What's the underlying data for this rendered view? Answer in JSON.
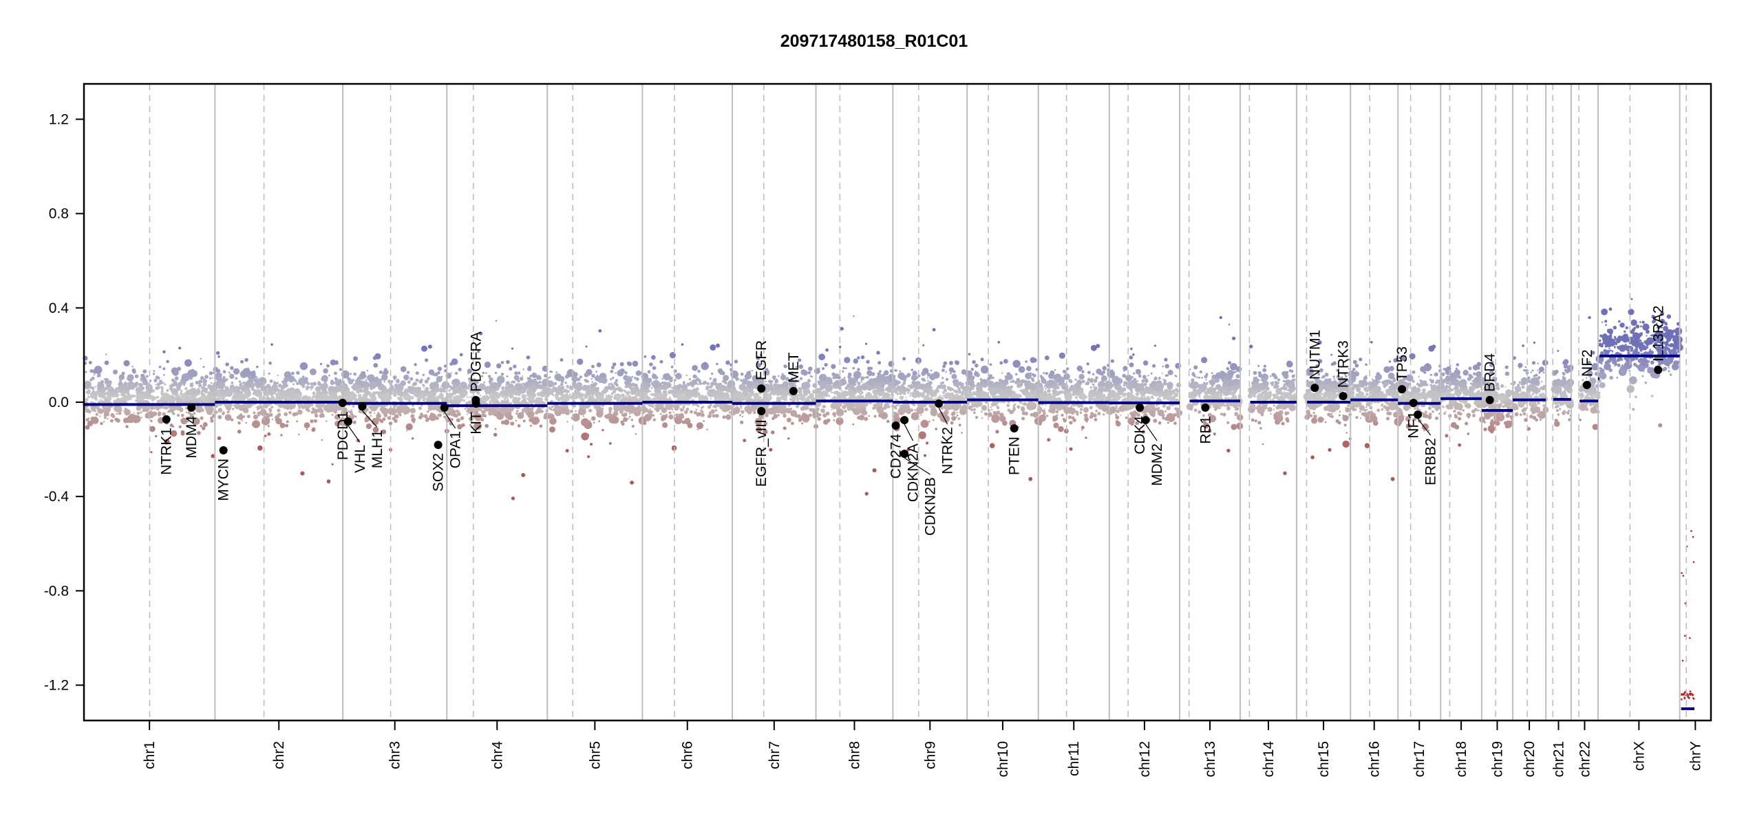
{
  "chart_data": {
    "type": "scatter",
    "title": "209717480158_R01C01",
    "xlabel": "",
    "ylabel": "",
    "ylim": [
      -1.35,
      1.35
    ],
    "yticks": [
      -1.2,
      -0.8,
      -0.4,
      0.0,
      0.4,
      0.8,
      1.2
    ],
    "grid": false,
    "x_unit": "Mb",
    "chromosomes": [
      {
        "name": "chr1",
        "length": 249.25,
        "centromere": 125.0
      },
      {
        "name": "chr2",
        "length": 243.2,
        "centromere": 93.3
      },
      {
        "name": "chr3",
        "length": 198.0,
        "centromere": 91.0
      },
      {
        "name": "chr4",
        "length": 191.15,
        "centromere": 50.4
      },
      {
        "name": "chr5",
        "length": 180.9,
        "centromere": 48.4
      },
      {
        "name": "chr6",
        "length": 171.1,
        "centromere": 61.0
      },
      {
        "name": "chr7",
        "length": 159.1,
        "centromere": 59.9
      },
      {
        "name": "chr8",
        "length": 146.4,
        "centromere": 45.6
      },
      {
        "name": "chr9",
        "length": 141.2,
        "centromere": 49.0
      },
      {
        "name": "chr10",
        "length": 135.5,
        "centromere": 40.2
      },
      {
        "name": "chr11",
        "length": 135.0,
        "centromere": 53.7
      },
      {
        "name": "chr12",
        "length": 133.9,
        "centromere": 35.8
      },
      {
        "name": "chr13",
        "length": 115.2,
        "centromere": 17.9
      },
      {
        "name": "chr14",
        "length": 107.3,
        "centromere": 17.6
      },
      {
        "name": "chr15",
        "length": 102.5,
        "centromere": 19.0
      },
      {
        "name": "chr16",
        "length": 90.4,
        "centromere": 36.6
      },
      {
        "name": "chr17",
        "length": 81.2,
        "centromere": 24.0
      },
      {
        "name": "chr18",
        "length": 78.1,
        "centromere": 17.2
      },
      {
        "name": "chr19",
        "length": 59.1,
        "centromere": 26.5
      },
      {
        "name": "chr20",
        "length": 63.0,
        "centromere": 27.5
      },
      {
        "name": "chr21",
        "length": 48.1,
        "centromere": 13.2
      },
      {
        "name": "chr22",
        "length": 51.3,
        "centromere": 14.7
      },
      {
        "name": "chrX",
        "length": 155.3,
        "centromere": 60.6
      },
      {
        "name": "chrY",
        "length": 59.4,
        "centromere": 12.5
      }
    ],
    "segments": [
      {
        "chr": "chr1",
        "start": 0,
        "end": 249.25,
        "value": -0.01
      },
      {
        "chr": "chr2",
        "start": 0,
        "end": 243.2,
        "value": 0.0
      },
      {
        "chr": "chr3",
        "start": 0,
        "end": 198.0,
        "value": -0.005
      },
      {
        "chr": "chr4",
        "start": 0,
        "end": 191.15,
        "value": -0.015
      },
      {
        "chr": "chr5",
        "start": 0,
        "end": 180.9,
        "value": -0.005
      },
      {
        "chr": "chr6",
        "start": 0,
        "end": 171.1,
        "value": 0.0
      },
      {
        "chr": "chr7",
        "start": 0,
        "end": 159.1,
        "value": -0.005
      },
      {
        "chr": "chr8",
        "start": 0,
        "end": 146.4,
        "value": 0.005
      },
      {
        "chr": "chr9",
        "start": 0,
        "end": 141.2,
        "value": 0.0
      },
      {
        "chr": "chr10",
        "start": 0,
        "end": 135.5,
        "value": 0.01
      },
      {
        "chr": "chr11",
        "start": 0,
        "end": 135.0,
        "value": -0.002
      },
      {
        "chr": "chr12",
        "start": 0,
        "end": 133.9,
        "value": -0.003
      },
      {
        "chr": "chr13",
        "start": 19.0,
        "end": 115.2,
        "value": 0.005
      },
      {
        "chr": "chr14",
        "start": 19.0,
        "end": 107.3,
        "value": 0.0
      },
      {
        "chr": "chr15",
        "start": 20.0,
        "end": 102.5,
        "value": 0.0
      },
      {
        "chr": "chr16",
        "start": 0,
        "end": 90.4,
        "value": 0.01
      },
      {
        "chr": "chr17",
        "start": 0,
        "end": 81.2,
        "value": -0.005
      },
      {
        "chr": "chr18",
        "start": 0,
        "end": 78.1,
        "value": 0.015
      },
      {
        "chr": "chr19",
        "start": 0,
        "end": 59.1,
        "value": -0.035
      },
      {
        "chr": "chr20",
        "start": 0,
        "end": 63.0,
        "value": 0.01
      },
      {
        "chr": "chr21",
        "start": 14.0,
        "end": 48.1,
        "value": 0.012
      },
      {
        "chr": "chr22",
        "start": 16.0,
        "end": 51.3,
        "value": 0.005
      },
      {
        "chr": "chrX",
        "start": 0,
        "end": 2.7,
        "value": 0.1
      },
      {
        "chr": "chrX",
        "start": 2.7,
        "end": 155.3,
        "value": 0.196
      },
      {
        "chr": "chrY",
        "start": 2.7,
        "end": 28.0,
        "value": -1.3
      }
    ],
    "genes": [
      {
        "name": "NTRK1",
        "chr": "chr1",
        "pos": 156.8,
        "value": -0.073
      },
      {
        "name": "MDM4",
        "chr": "chr1",
        "pos": 204.5,
        "value": -0.023
      },
      {
        "name": "MYCN",
        "chr": "chr2",
        "pos": 16.1,
        "value": -0.204
      },
      {
        "name": "PDCD1",
        "chr": "chr2",
        "pos": 242.8,
        "value": -0.003
      },
      {
        "name": "VHL",
        "chr": "chr3",
        "pos": 10.2,
        "value": -0.082
      },
      {
        "name": "MLH1",
        "chr": "chr3",
        "pos": 37.0,
        "value": -0.018
      },
      {
        "name": "SOX2",
        "chr": "chr3",
        "pos": 181.4,
        "value": -0.181
      },
      {
        "name": "OPA1",
        "chr": "chr3",
        "pos": 193.3,
        "value": -0.023
      },
      {
        "name": "KIT",
        "chr": "chr4",
        "pos": 55.5,
        "value": -0.006
      },
      {
        "name": "PDGFRA",
        "chr": "chr4",
        "pos": 55.1,
        "value": 0.009
      },
      {
        "name": "EGFR",
        "chr": "chr7",
        "pos": 55.2,
        "value": 0.058
      },
      {
        "name": "EGFR_vIII",
        "chr": "chr7",
        "pos": 55.2,
        "value": -0.038
      },
      {
        "name": "MET",
        "chr": "chr7",
        "pos": 116.3,
        "value": 0.047
      },
      {
        "name": "CD274",
        "chr": "chr9",
        "pos": 5.5,
        "value": -0.099
      },
      {
        "name": "CDKN2A",
        "chr": "chr9",
        "pos": 21.97,
        "value": -0.076
      },
      {
        "name": "CDKN2B",
        "chr": "chr9",
        "pos": 22.0,
        "value": -0.219
      },
      {
        "name": "NTRK2",
        "chr": "chr9",
        "pos": 87.3,
        "value": -0.006
      },
      {
        "name": "PTEN",
        "chr": "chr10",
        "pos": 89.6,
        "value": -0.111
      },
      {
        "name": "CDK4",
        "chr": "chr12",
        "pos": 58.1,
        "value": -0.023
      },
      {
        "name": "MDM2",
        "chr": "chr12",
        "pos": 69.2,
        "value": -0.076
      },
      {
        "name": "RB1",
        "chr": "chr13",
        "pos": 48.9,
        "value": -0.023
      },
      {
        "name": "NUTM1",
        "chr": "chr15",
        "pos": 34.6,
        "value": 0.061
      },
      {
        "name": "NTRK3",
        "chr": "chr15",
        "pos": 88.6,
        "value": 0.026
      },
      {
        "name": "TP53",
        "chr": "chr17",
        "pos": 7.6,
        "value": 0.055
      },
      {
        "name": "NF1",
        "chr": "chr17",
        "pos": 29.4,
        "value": -0.003
      },
      {
        "name": "ERBB2",
        "chr": "chr17",
        "pos": 37.8,
        "value": -0.053
      },
      {
        "name": "BRD4",
        "chr": "chr19",
        "pos": 15.4,
        "value": 0.009
      },
      {
        "name": "NF2",
        "chr": "chr22",
        "pos": 30.0,
        "value": 0.073
      },
      {
        "name": "IL13RA2",
        "chr": "chrX",
        "pos": 114.2,
        "value": 0.137
      }
    ],
    "colors": {
      "segment": "#00008b",
      "gain_points": "#7070b8",
      "neutral_points": "#c8c8c8",
      "loss_points": "#a85a5a",
      "chrY_points": "#b02020",
      "gene_dot": "#000000",
      "chrom_boundary": "#bebebe",
      "centromere": "#bebebe"
    }
  }
}
